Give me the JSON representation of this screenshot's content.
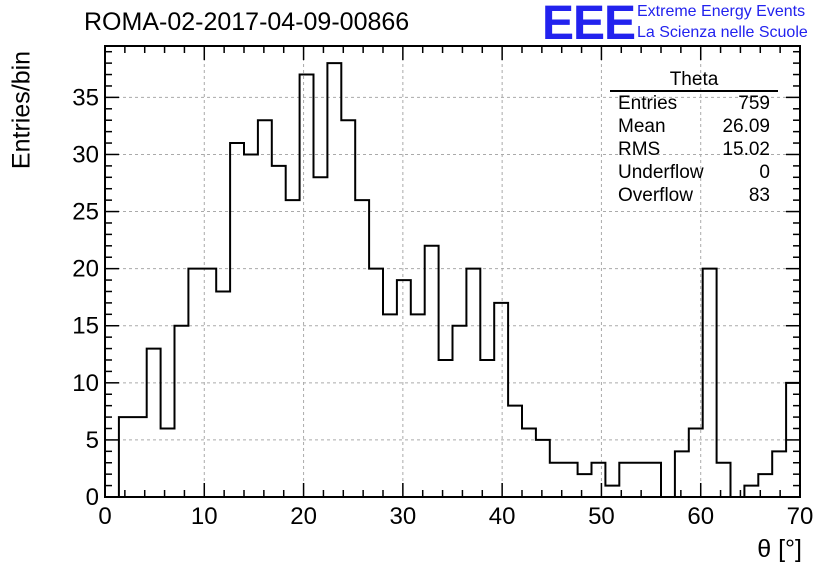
{
  "title": "ROMA-02-2017-04-09-00866",
  "logo_text": "EEE",
  "brand_line1": "Extreme Energy Events",
  "brand_line2": "La Scienza nelle Scuole",
  "colors": {
    "brand": "#2222ee",
    "histogram": "#000000",
    "grid": "#aaaaaa"
  },
  "stats": {
    "name": "Theta",
    "rows": [
      {
        "label": "Entries",
        "value": "759"
      },
      {
        "label": "Mean",
        "value": "26.09"
      },
      {
        "label": "RMS",
        "value": "15.02"
      },
      {
        "label": "Underflow",
        "value": "0"
      },
      {
        "label": "Overflow",
        "value": "83"
      }
    ]
  },
  "chart_data": {
    "type": "histogram",
    "title": "ROMA-02-2017-04-09-00866",
    "xlabel": "θ [°]",
    "ylabel": "Entries/bin",
    "xlim": [
      0,
      70
    ],
    "ylim": [
      0,
      39.5
    ],
    "bin_start": 0,
    "bin_width": 1.4,
    "xticks": [
      0,
      10,
      20,
      30,
      40,
      50,
      60,
      70
    ],
    "yticks": [
      0,
      5,
      10,
      15,
      20,
      25,
      30,
      35
    ],
    "grid": true,
    "legend": "top-right",
    "bin_values": [
      0,
      7,
      7,
      13,
      6,
      15,
      20,
      20,
      18,
      31,
      30,
      33,
      29,
      26,
      37,
      28,
      38,
      33,
      26,
      20,
      16,
      19,
      16,
      22,
      12,
      15,
      20,
      12,
      17,
      8,
      6,
      5,
      3,
      3,
      2,
      3,
      1,
      3,
      3,
      3,
      0,
      4,
      6,
      20,
      3,
      0,
      1,
      2,
      4,
      10
    ]
  }
}
